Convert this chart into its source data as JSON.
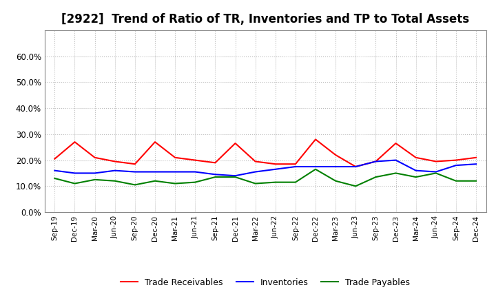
{
  "title": "[2922]  Trend of Ratio of TR, Inventories and TP to Total Assets",
  "x_labels": [
    "Sep-19",
    "Dec-19",
    "Mar-20",
    "Jun-20",
    "Sep-20",
    "Dec-20",
    "Mar-21",
    "Jun-21",
    "Sep-21",
    "Dec-21",
    "Mar-22",
    "Jun-22",
    "Sep-22",
    "Dec-22",
    "Mar-23",
    "Jun-23",
    "Sep-23",
    "Dec-23",
    "Mar-24",
    "Jun-24",
    "Sep-24",
    "Dec-24"
  ],
  "trade_receivables": [
    0.205,
    0.27,
    0.21,
    0.195,
    0.185,
    0.27,
    0.21,
    0.2,
    0.19,
    0.265,
    0.195,
    0.185,
    0.185,
    0.28,
    0.22,
    0.175,
    0.195,
    0.265,
    0.21,
    0.195,
    0.2,
    0.21
  ],
  "inventories": [
    0.16,
    0.15,
    0.15,
    0.16,
    0.155,
    0.155,
    0.155,
    0.155,
    0.145,
    0.14,
    0.155,
    0.165,
    0.175,
    0.175,
    0.175,
    0.175,
    0.195,
    0.2,
    0.16,
    0.155,
    0.18,
    0.185
  ],
  "trade_payables": [
    0.13,
    0.11,
    0.125,
    0.12,
    0.105,
    0.12,
    0.11,
    0.115,
    0.135,
    0.135,
    0.11,
    0.115,
    0.115,
    0.165,
    0.12,
    0.1,
    0.135,
    0.15,
    0.135,
    0.15,
    0.12,
    0.12
  ],
  "ylim": [
    0.0,
    0.7
  ],
  "yticks": [
    0.0,
    0.1,
    0.2,
    0.3,
    0.4,
    0.5,
    0.6
  ],
  "color_tr": "#FF0000",
  "color_inv": "#0000FF",
  "color_tp": "#008000",
  "bg_color": "#FFFFFF",
  "grid_color": "#AAAAAA",
  "title_fontsize": 12,
  "legend_labels": [
    "Trade Receivables",
    "Inventories",
    "Trade Payables"
  ]
}
